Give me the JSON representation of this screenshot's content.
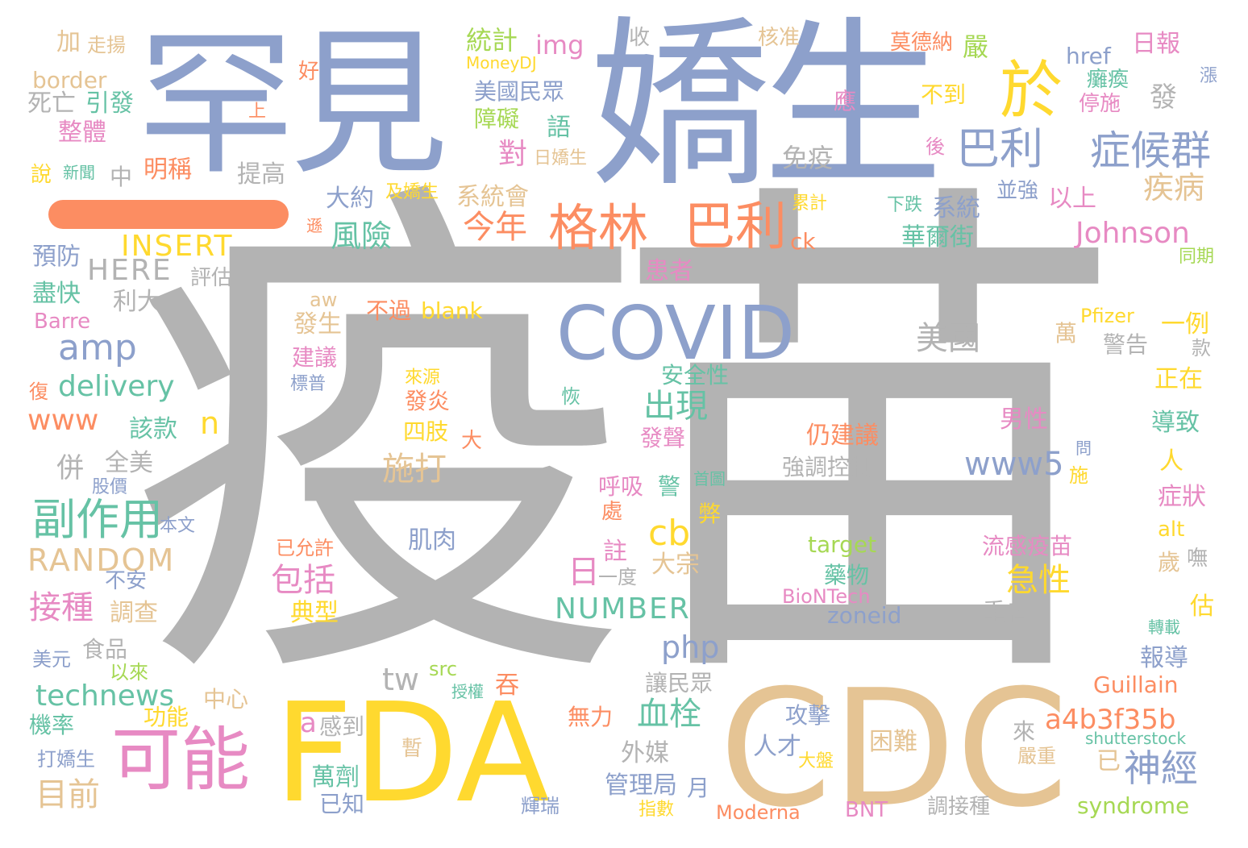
{
  "colors": {
    "gray": "#b3b3b3",
    "blue": "#8da0cb",
    "gold": "#ffd92f",
    "orange": "#fc8d62",
    "pink": "#e78ac3",
    "green": "#66c2a5",
    "lime": "#a6d854",
    "tan": "#e5c494"
  },
  "words": [
    {
      "text": "疫苗",
      "c": "gray"
    },
    {
      "text": "罕見",
      "c": "blue"
    },
    {
      "text": "嬌生",
      "c": "blue"
    },
    {
      "text": "CDC",
      "c": "tan"
    },
    {
      "text": "FDA",
      "c": "gold"
    },
    {
      "text": "一",
      "c": "orange"
    },
    {
      "text": "於",
      "c": "gold"
    },
    {
      "text": "COVID",
      "c": "blue"
    },
    {
      "text": "可能",
      "c": "pink"
    },
    {
      "text": "格林",
      "c": "orange"
    },
    {
      "text": "巴利",
      "c": "orange"
    },
    {
      "text": "巴利",
      "c": "blue"
    },
    {
      "text": "症候群",
      "c": "blue"
    },
    {
      "text": "副作用",
      "c": "green"
    },
    {
      "text": "Johnson",
      "c": "pink"
    },
    {
      "text": "amp",
      "c": "blue"
    },
    {
      "text": "delivery",
      "c": "green"
    },
    {
      "text": "technews",
      "c": "green"
    },
    {
      "text": "RANDOM",
      "c": "tan"
    },
    {
      "text": "HERE",
      "c": "gray"
    },
    {
      "text": "INSERT",
      "c": "gold"
    },
    {
      "text": "NUMBER",
      "c": "green"
    },
    {
      "text": "www5",
      "c": "blue"
    },
    {
      "text": "a4b3f35b",
      "c": "orange"
    },
    {
      "text": "出現",
      "c": "green"
    },
    {
      "text": "施打",
      "c": "tan"
    },
    {
      "text": "急性",
      "c": "gold"
    },
    {
      "text": "神經",
      "c": "blue"
    },
    {
      "text": "包括",
      "c": "pink"
    },
    {
      "text": "接種",
      "c": "pink"
    },
    {
      "text": "目前",
      "c": "tan"
    },
    {
      "text": "血栓",
      "c": "green"
    },
    {
      "text": "cb",
      "c": "gold"
    },
    {
      "text": "php",
      "c": "blue"
    },
    {
      "text": "tw",
      "c": "gray"
    },
    {
      "text": "www",
      "c": "orange"
    },
    {
      "text": "n",
      "c": "gold"
    },
    {
      "text": "a",
      "c": "pink"
    },
    {
      "text": "今年",
      "c": "orange"
    },
    {
      "text": "風險",
      "c": "green"
    },
    {
      "text": "疾病",
      "c": "tan"
    },
    {
      "text": "美國",
      "c": "gray"
    },
    {
      "text": "日",
      "c": "pink"
    },
    {
      "text": "已",
      "c": "tan"
    },
    {
      "text": "對",
      "c": "pink"
    },
    {
      "text": "發",
      "c": "gray"
    },
    {
      "text": "大約",
      "c": "blue"
    },
    {
      "text": "系統會",
      "c": "tan"
    },
    {
      "text": "以上",
      "c": "pink"
    },
    {
      "text": "系統",
      "c": "blue"
    },
    {
      "text": "華爾街",
      "c": "green"
    },
    {
      "text": "停施",
      "c": "pink"
    },
    {
      "text": "癱瘓",
      "c": "green"
    },
    {
      "text": "href",
      "c": "blue"
    },
    {
      "text": "日報",
      "c": "pink"
    },
    {
      "text": "嚴",
      "c": "lime"
    },
    {
      "text": "莫德納",
      "c": "orange"
    },
    {
      "text": "核准",
      "c": "tan"
    },
    {
      "text": "收",
      "c": "gray"
    },
    {
      "text": "統計",
      "c": "lime"
    },
    {
      "text": "img",
      "c": "pink"
    },
    {
      "text": "MoneyDJ",
      "c": "gold"
    },
    {
      "text": "美國民眾",
      "c": "blue"
    },
    {
      "text": "障礙",
      "c": "lime"
    },
    {
      "text": "語",
      "c": "green"
    },
    {
      "text": "不到",
      "c": "gold"
    },
    {
      "text": "應",
      "c": "pink"
    },
    {
      "text": "後",
      "c": "pink"
    },
    {
      "text": "免疫",
      "c": "gray"
    },
    {
      "text": "日嬌生",
      "c": "tan"
    },
    {
      "text": "及嬌生",
      "c": "gold"
    },
    {
      "text": "累計",
      "c": "gold"
    },
    {
      "text": "下跌",
      "c": "green"
    },
    {
      "text": "並強",
      "c": "blue"
    },
    {
      "text": "ck",
      "c": "orange"
    },
    {
      "text": "遜",
      "c": "orange"
    },
    {
      "text": "患者",
      "c": "pink"
    },
    {
      "text": "漲",
      "c": "blue"
    },
    {
      "text": "同期",
      "c": "lime"
    },
    {
      "text": "加",
      "c": "tan"
    },
    {
      "text": "走揚",
      "c": "tan"
    },
    {
      "text": "好",
      "c": "orange"
    },
    {
      "text": "border",
      "c": "tan"
    },
    {
      "text": "死亡",
      "c": "gray"
    },
    {
      "text": "引發",
      "c": "green"
    },
    {
      "text": "上",
      "c": "orange"
    },
    {
      "text": "整體",
      "c": "pink"
    },
    {
      "text": "說",
      "c": "gold"
    },
    {
      "text": "新聞",
      "c": "green"
    },
    {
      "text": "中",
      "c": "gray"
    },
    {
      "text": "明稱",
      "c": "orange"
    },
    {
      "text": "提高",
      "c": "gray"
    },
    {
      "text": "預防",
      "c": "blue"
    },
    {
      "text": "評估",
      "c": "gray"
    },
    {
      "text": "盡快",
      "c": "green"
    },
    {
      "text": "利大",
      "c": "gray"
    },
    {
      "text": "Barre",
      "c": "pink"
    },
    {
      "text": "aw",
      "c": "tan"
    },
    {
      "text": "發生",
      "c": "tan"
    },
    {
      "text": "不過",
      "c": "orange"
    },
    {
      "text": "blank",
      "c": "gold"
    },
    {
      "text": "Pfizer",
      "c": "gold"
    },
    {
      "text": "萬",
      "c": "tan"
    },
    {
      "text": "警告",
      "c": "gray"
    },
    {
      "text": "一例",
      "c": "gold"
    },
    {
      "text": "款",
      "c": "gray"
    },
    {
      "text": "建議",
      "c": "pink"
    },
    {
      "text": "標普",
      "c": "blue"
    },
    {
      "text": "來源",
      "c": "gold"
    },
    {
      "text": "安全性",
      "c": "green"
    },
    {
      "text": "復",
      "c": "orange"
    },
    {
      "text": "正在",
      "c": "gold"
    },
    {
      "text": "恢",
      "c": "green"
    },
    {
      "text": "發炎",
      "c": "orange"
    },
    {
      "text": "男性",
      "c": "pink"
    },
    {
      "text": "導致",
      "c": "green"
    },
    {
      "text": "仍建議",
      "c": "orange"
    },
    {
      "text": "該款",
      "c": "green"
    },
    {
      "text": "四肢",
      "c": "gold"
    },
    {
      "text": "發聲",
      "c": "pink"
    },
    {
      "text": "大",
      "c": "orange"
    },
    {
      "text": "人",
      "c": "gold"
    },
    {
      "text": "問",
      "c": "blue"
    },
    {
      "text": "強調控制",
      "c": "gray"
    },
    {
      "text": "全美",
      "c": "gray"
    },
    {
      "text": "併",
      "c": "gray"
    },
    {
      "text": "施",
      "c": "gold"
    },
    {
      "text": "股價",
      "c": "blue"
    },
    {
      "text": "呼吸",
      "c": "pink"
    },
    {
      "text": "警",
      "c": "green"
    },
    {
      "text": "首圖",
      "c": "green"
    },
    {
      "text": "症狀",
      "c": "pink"
    },
    {
      "text": "處",
      "c": "orange"
    },
    {
      "text": "弊",
      "c": "gold"
    },
    {
      "text": "本文",
      "c": "blue"
    },
    {
      "text": "alt",
      "c": "gold"
    },
    {
      "text": "肌肉",
      "c": "blue"
    },
    {
      "text": "已允許",
      "c": "orange"
    },
    {
      "text": "target",
      "c": "lime"
    },
    {
      "text": "流感疫苗",
      "c": "pink"
    },
    {
      "text": "註",
      "c": "pink"
    },
    {
      "text": "歲",
      "c": "tan"
    },
    {
      "text": "嘸",
      "c": "gray"
    },
    {
      "text": "一度",
      "c": "gray"
    },
    {
      "text": "大宗",
      "c": "tan"
    },
    {
      "text": "藥物",
      "c": "green"
    },
    {
      "text": "不安",
      "c": "blue"
    },
    {
      "text": "BioNTech",
      "c": "pink"
    },
    {
      "text": "調查",
      "c": "tan"
    },
    {
      "text": "典型",
      "c": "gold"
    },
    {
      "text": "zoneid",
      "c": "blue"
    },
    {
      "text": "重者",
      "c": "gray"
    },
    {
      "text": "估",
      "c": "gold"
    },
    {
      "text": "轉載",
      "c": "green"
    },
    {
      "text": "食品",
      "c": "gray"
    },
    {
      "text": "美元",
      "c": "blue"
    },
    {
      "text": "以來",
      "c": "lime"
    },
    {
      "text": "報導",
      "c": "blue"
    },
    {
      "text": "src",
      "c": "lime"
    },
    {
      "text": "授權",
      "c": "green"
    },
    {
      "text": "吞",
      "c": "orange"
    },
    {
      "text": "讓民眾",
      "c": "gray"
    },
    {
      "text": "Guillain",
      "c": "orange"
    },
    {
      "text": "中心",
      "c": "tan"
    },
    {
      "text": "功能",
      "c": "gold"
    },
    {
      "text": "機率",
      "c": "green"
    },
    {
      "text": "感到",
      "c": "gray"
    },
    {
      "text": "無力",
      "c": "orange"
    },
    {
      "text": "攻擊",
      "c": "blue"
    },
    {
      "text": "外媒",
      "c": "gray"
    },
    {
      "text": "暫",
      "c": "tan"
    },
    {
      "text": "困難",
      "c": "tan"
    },
    {
      "text": "人才",
      "c": "blue"
    },
    {
      "text": "來",
      "c": "gray"
    },
    {
      "text": "shutterstock",
      "c": "green"
    },
    {
      "text": "嚴重",
      "c": "tan"
    },
    {
      "text": "打嬌生",
      "c": "blue"
    },
    {
      "text": "萬劑",
      "c": "green"
    },
    {
      "text": "管理局",
      "c": "blue"
    },
    {
      "text": "月",
      "c": "blue"
    },
    {
      "text": "大盤",
      "c": "gold"
    },
    {
      "text": "已知",
      "c": "blue"
    },
    {
      "text": "輝瑞",
      "c": "blue"
    },
    {
      "text": "指數",
      "c": "gold"
    },
    {
      "text": "Moderna",
      "c": "orange"
    },
    {
      "text": "BNT",
      "c": "pink"
    },
    {
      "text": "調接種",
      "c": "gray"
    },
    {
      "text": "syndrome",
      "c": "lime"
    }
  ]
}
